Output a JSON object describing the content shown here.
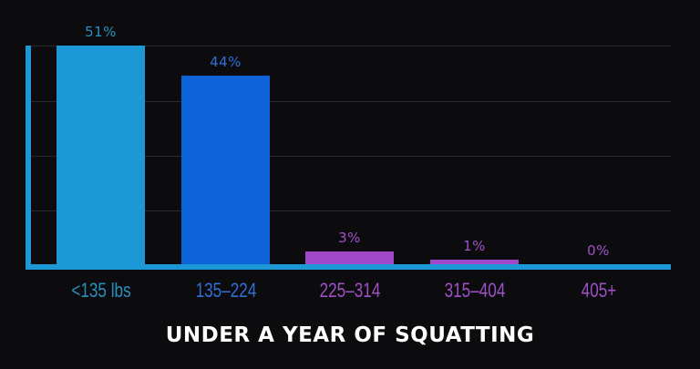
{
  "chart_data": {
    "type": "bar",
    "title": "UNDER A YEAR OF SQUATTING",
    "xlabel": "",
    "ylabel": "",
    "categories": [
      "<135 lbs",
      "135-224",
      "225-314",
      "315-404",
      "405+"
    ],
    "values": [
      51,
      44,
      3,
      1,
      0
    ],
    "value_labels": [
      "51%",
      "44%",
      "3%",
      "1%",
      "0%"
    ],
    "unit": "%",
    "ylim": [
      0,
      51
    ],
    "grid": true,
    "legend": null,
    "bar_colors": [
      "#1b98d5",
      "#0c62d6",
      "#a048c8",
      "#a048c8",
      "#a048c8"
    ],
    "label_colors": [
      "#2a8fbf",
      "#2f6fd6",
      "#a050c8",
      "#a050c8",
      "#a050c8"
    ]
  },
  "chart": {
    "title": "UNDER A YEAR OF SQUATTING",
    "bars": [
      {
        "category": "<135 lbs",
        "value_label": "51%"
      },
      {
        "category": "135–224",
        "value_label": "44%"
      },
      {
        "category": "225–314",
        "value_label": "3%"
      },
      {
        "category": "315–404",
        "value_label": "1%"
      },
      {
        "category": "405+",
        "value_label": "0%"
      }
    ]
  },
  "colors": {
    "background": "#0c0c0e",
    "axis": "#1b98d5",
    "gridline": "#2a2a2c",
    "title": "#ffffff"
  }
}
